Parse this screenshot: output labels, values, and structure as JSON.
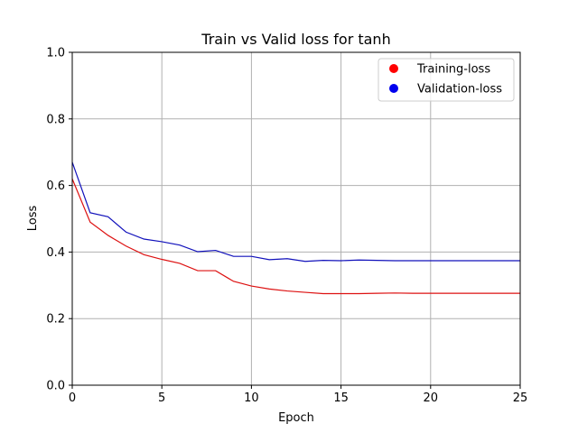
{
  "chart_data": {
    "type": "line",
    "title": "Train vs Valid loss for tanh",
    "xlabel": "Epoch",
    "ylabel": "Loss",
    "xlim": [
      0,
      25
    ],
    "ylim": [
      0.0,
      1.0
    ],
    "x_ticks": [
      0,
      5,
      10,
      15,
      20,
      25
    ],
    "y_ticks": [
      0.0,
      0.2,
      0.4,
      0.6,
      0.8,
      1.0
    ],
    "x_tick_labels": [
      "0",
      "5",
      "10",
      "15",
      "20",
      "25"
    ],
    "y_tick_labels": [
      "0.0",
      "0.2",
      "0.4",
      "0.6",
      "0.8",
      "1.0"
    ],
    "grid": true,
    "legend_position": "top-right",
    "x": [
      0,
      1,
      2,
      3,
      4,
      5,
      6,
      7,
      8,
      9,
      10,
      11,
      12,
      13,
      14,
      15,
      16,
      17,
      18,
      19,
      20,
      21,
      22,
      23,
      24,
      25
    ],
    "series": [
      {
        "name": "Training-loss",
        "color": "#ff0000",
        "marker_color": "#ff0000",
        "line_color": "#dd1111",
        "values": [
          0.62,
          0.49,
          0.45,
          0.418,
          0.392,
          0.378,
          0.366,
          0.344,
          0.344,
          0.312,
          0.298,
          0.289,
          0.283,
          0.279,
          0.275,
          0.275,
          0.275,
          0.276,
          0.277,
          0.276,
          0.276,
          0.276,
          0.276,
          0.276,
          0.276,
          0.276
        ]
      },
      {
        "name": "Validation-loss",
        "color": "#0000ff",
        "marker_color": "#0000ee",
        "line_color": "#1111bb",
        "values": [
          0.67,
          0.518,
          0.506,
          0.46,
          0.439,
          0.431,
          0.421,
          0.401,
          0.405,
          0.387,
          0.387,
          0.377,
          0.38,
          0.372,
          0.375,
          0.374,
          0.376,
          0.375,
          0.374,
          0.374,
          0.374,
          0.374,
          0.374,
          0.374,
          0.374,
          0.374
        ]
      }
    ]
  }
}
